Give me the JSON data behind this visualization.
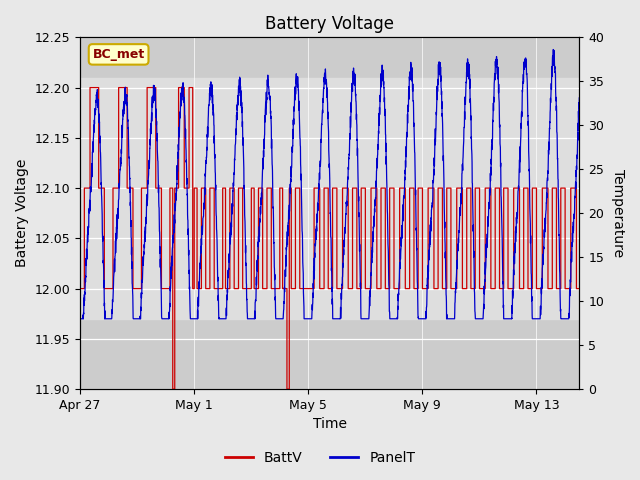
{
  "title": "Battery Voltage",
  "xlabel": "Time",
  "ylabel_left": "Battery Voltage",
  "ylabel_right": "Temperature",
  "ylim_left": [
    11.9,
    12.25
  ],
  "ylim_right": [
    0,
    40
  ],
  "fig_bg_color": "#e8e8e8",
  "plot_bg_color": "#cccccc",
  "shaded_band_color": "#dedede",
  "shaded_band": [
    11.97,
    12.21
  ],
  "legend_label_red": "BattV",
  "legend_label_blue": "PanelT",
  "source_label": "BC_met",
  "source_label_facecolor": "#ffffcc",
  "source_label_edgecolor": "#ccaa00",
  "source_label_textcolor": "#880000",
  "red_color": "#cc0000",
  "blue_color": "#0000cc",
  "x_tick_labels": [
    "Apr 27",
    "May 1",
    "May 5",
    "May 9",
    "May 13"
  ],
  "x_tick_positions": [
    0,
    4,
    8,
    12,
    16
  ],
  "x_lim": [
    0,
    17.5
  ],
  "y_left_ticks": [
    11.9,
    11.95,
    12.0,
    12.05,
    12.1,
    12.15,
    12.2,
    12.25
  ],
  "y_right_ticks": [
    0,
    5,
    10,
    15,
    20,
    25,
    30,
    35,
    40
  ]
}
